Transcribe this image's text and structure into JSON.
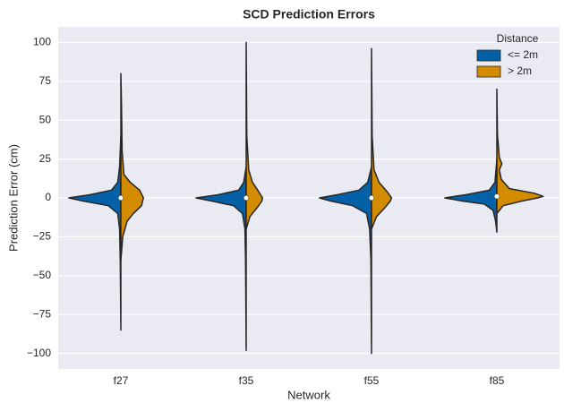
{
  "chart_data": {
    "type": "violin",
    "split": true,
    "title": "SCD Prediction Errors",
    "x_label": "Network",
    "y_label": "Prediction Error (cm)",
    "categories": [
      "f27",
      "f35",
      "f55",
      "f85"
    ],
    "medians": [
      0,
      0,
      0,
      1
    ],
    "ylim": [
      -110,
      110
    ],
    "yticks": [
      {
        "value": -100,
        "label": "−100"
      },
      {
        "value": -75,
        "label": "−75"
      },
      {
        "value": -50,
        "label": "−50"
      },
      {
        "value": -25,
        "label": "−25"
      },
      0,
      25,
      50,
      75,
      100
    ],
    "grid": true,
    "background": "#eaeaf2",
    "legend": {
      "title": "Distance",
      "position": "upper right"
    },
    "series": [
      {
        "name": "<= 2m",
        "color": "#0461a7",
        "side": "left",
        "violins": [
          {
            "y": [
              -85,
              -40,
              -20,
              -10,
              -5,
              -2,
              0,
              2,
              5,
              10,
              20,
              40
            ],
            "density": [
              0,
              0.01,
              0.02,
              0.05,
              0.2,
              0.6,
              0.83,
              0.5,
              0.15,
              0.05,
              0.02,
              0
            ]
          },
          {
            "y": [
              -98,
              -40,
              -20,
              -10,
              -5,
              -2,
              0,
              2,
              5,
              10,
              20
            ],
            "density": [
              0,
              0.01,
              0.02,
              0.06,
              0.2,
              0.55,
              0.8,
              0.45,
              0.12,
              0.04,
              0
            ]
          },
          {
            "y": [
              -100,
              -40,
              -20,
              -10,
              -5,
              -2,
              0,
              2,
              5,
              10,
              20
            ],
            "density": [
              0,
              0.01,
              0.03,
              0.08,
              0.3,
              0.65,
              0.83,
              0.55,
              0.2,
              0.06,
              0
            ]
          },
          {
            "y": [
              -22,
              -15,
              -8,
              -4,
              -2,
              0,
              2,
              5,
              10,
              25
            ],
            "density": [
              0,
              0.02,
              0.06,
              0.2,
              0.55,
              0.83,
              0.5,
              0.12,
              0.03,
              0
            ]
          }
        ]
      },
      {
        "name": "> 2m",
        "color": "#d38b00",
        "side": "right",
        "violins": [
          {
            "y": [
              -40,
              -25,
              -15,
              -10,
              -5,
              0,
              5,
              10,
              15,
              30,
              60,
              80
            ],
            "density": [
              0,
              0.03,
              0.1,
              0.2,
              0.33,
              0.36,
              0.3,
              0.15,
              0.05,
              0.02,
              0.01,
              0
            ]
          },
          {
            "y": [
              -20,
              -12,
              -6,
              -2,
              0,
              4,
              10,
              18,
              40,
              100
            ],
            "density": [
              0,
              0.06,
              0.18,
              0.25,
              0.26,
              0.2,
              0.1,
              0.04,
              0.01,
              0
            ]
          },
          {
            "y": [
              -20,
              -12,
              -6,
              -2,
              0,
              4,
              10,
              18,
              40,
              96
            ],
            "density": [
              0,
              0.08,
              0.22,
              0.3,
              0.32,
              0.25,
              0.12,
              0.04,
              0.01,
              0
            ]
          },
          {
            "y": [
              -10,
              -5,
              -2,
              0,
              1,
              3,
              6,
              12,
              18,
              22,
              26,
              40,
              70
            ],
            "density": [
              0,
              0.1,
              0.4,
              0.65,
              0.74,
              0.6,
              0.2,
              0.07,
              0.04,
              0.08,
              0.04,
              0.01,
              0
            ]
          }
        ]
      }
    ]
  }
}
